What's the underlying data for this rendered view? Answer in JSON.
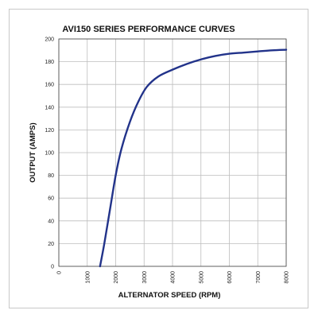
{
  "chart_data": {
    "type": "line",
    "title": "AVI150 SERIES PERFORMANCE CURVES",
    "xlabel": "ALTERNATOR SPEED (RPM)",
    "ylabel": "OUTPUT (AMPS)",
    "xlim": [
      0,
      8000
    ],
    "ylim": [
      0,
      200
    ],
    "x_ticks": [
      "0",
      "1000",
      "2000",
      "3000",
      "4000",
      "5000",
      "6000",
      "7000",
      "8000"
    ],
    "y_ticks": [
      "0",
      "20",
      "40",
      "60",
      "80",
      "100",
      "120",
      "140",
      "160",
      "180",
      "200"
    ],
    "grid": true,
    "series": [
      {
        "color": "#22338a",
        "x": [
          1450,
          1600,
          1800,
          2000,
          2200,
          2500,
          2800,
          3100,
          3500,
          4000,
          4500,
          5000,
          5500,
          6000,
          6500,
          7000,
          7500,
          8000
        ],
        "y": [
          0,
          20,
          50,
          80,
          103,
          127,
          145,
          158,
          167,
          173,
          178,
          182,
          185,
          187,
          188,
          189,
          190,
          190.5
        ]
      }
    ]
  }
}
